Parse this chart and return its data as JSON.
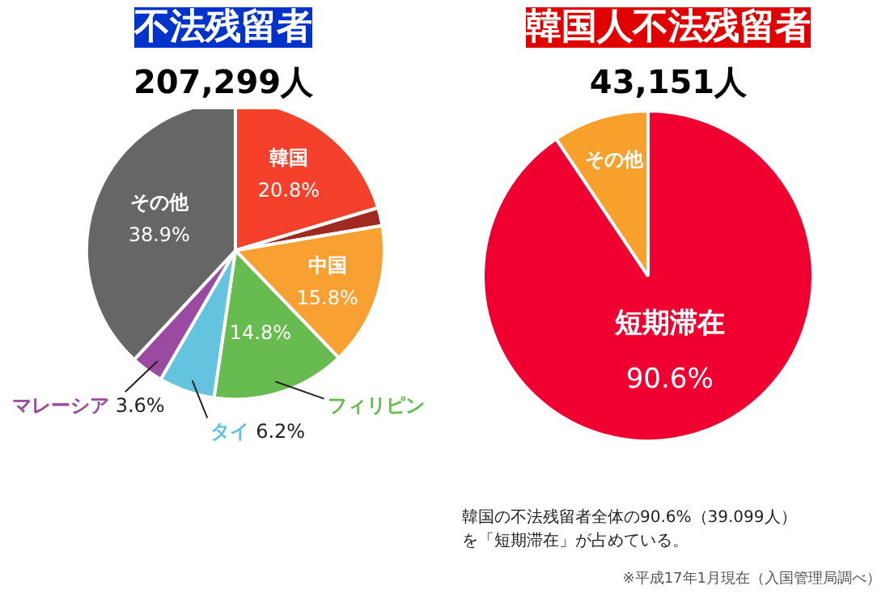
{
  "chart_data": [
    {
      "type": "pie",
      "title": "不法残留者",
      "subtitle": "207,299人",
      "categories": [
        "韓国",
        null,
        "中国",
        "フィリピン",
        "タイ",
        "マレーシア",
        "その他"
      ],
      "values": [
        20.8,
        2.0,
        15.8,
        14.8,
        6.2,
        3.6,
        38.9
      ],
      "value_labels": [
        "20.8%",
        null,
        "15.8%",
        "14.8%",
        "6.2%",
        "3.6%",
        "38.9%"
      ],
      "colors": [
        "#f5412b",
        "#9e2a22",
        "#f9a033",
        "#67bb4f",
        "#64c3de",
        "#9a4aa0",
        "#666666"
      ]
    },
    {
      "type": "pie",
      "title": "韓国人不法残留者",
      "subtitle": "43,151人",
      "categories": [
        "短期滞在",
        "その他"
      ],
      "values": [
        90.6,
        9.4
      ],
      "value_labels": [
        "90.6%",
        null
      ],
      "colors": [
        "#f00030",
        "#f7a02c"
      ],
      "annotations": [
        "韓国の不法残留者全体の90.6%（39.099人）を「短期滞在」が占めている。",
        "※平成17年1月現在（入国管理局調べ）"
      ]
    }
  ]
}
